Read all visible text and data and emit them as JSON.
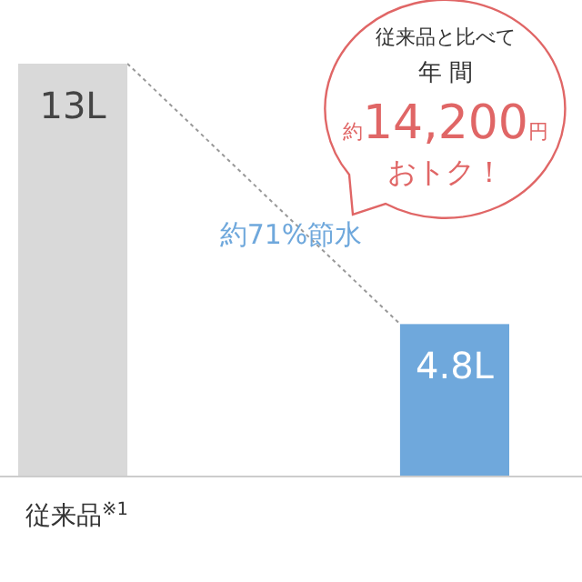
{
  "chart_data": {
    "type": "bar",
    "categories": [
      "従来品$^{※1}$",
      null
    ],
    "values": [
      13,
      4.8
    ],
    "colors": [
      "#d9d9d9",
      "#6fa8dc"
    ],
    "value_labels": [
      "13L",
      "4.8L"
    ],
    "annotations": [
      "約71%節水",
      "従来品と比べて",
      "年 間",
      "約14,200円",
      "おトク！"
    ]
  }
}
